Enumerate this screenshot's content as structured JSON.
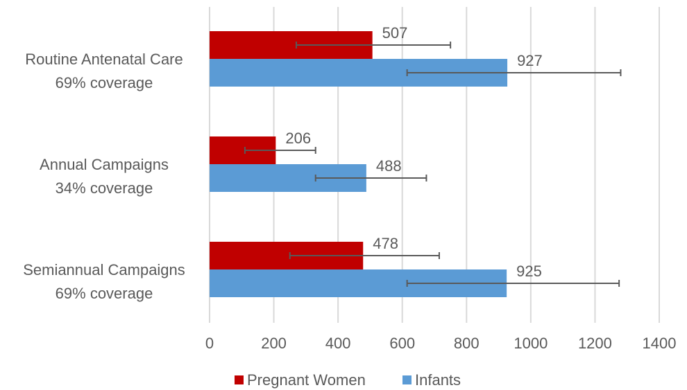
{
  "chart_data": {
    "type": "bar",
    "orientation": "horizontal",
    "categories": [
      {
        "line1": "Routine Antenatal Care",
        "line2": "69% coverage"
      },
      {
        "line1": "Annual Campaigns",
        "line2": "34% coverage"
      },
      {
        "line1": "Semiannual Campaigns",
        "line2": "69% coverage"
      }
    ],
    "series": [
      {
        "name": "Pregnant Women",
        "color": "#c00000",
        "values": [
          507,
          206,
          478
        ],
        "labels": [
          "507",
          "206",
          "478"
        ],
        "error_low": [
          270,
          110,
          250
        ],
        "error_high": [
          750,
          330,
          715
        ]
      },
      {
        "name": "Infants",
        "color": "#5b9bd5",
        "values": [
          927,
          488,
          925
        ],
        "labels": [
          "927",
          "488",
          "925"
        ],
        "error_low": [
          615,
          330,
          615
        ],
        "error_high": [
          1280,
          675,
          1275
        ]
      }
    ],
    "xlim": [
      0,
      1400
    ],
    "xticks": [
      0,
      200,
      400,
      600,
      800,
      1000,
      1200,
      1400
    ],
    "xtick_labels": [
      "0",
      "200",
      "400",
      "600",
      "800",
      "1000",
      "1200",
      "1400"
    ],
    "grid": "vertical",
    "legend_position": "bottom",
    "title": "",
    "xlabel": "",
    "ylabel": ""
  }
}
